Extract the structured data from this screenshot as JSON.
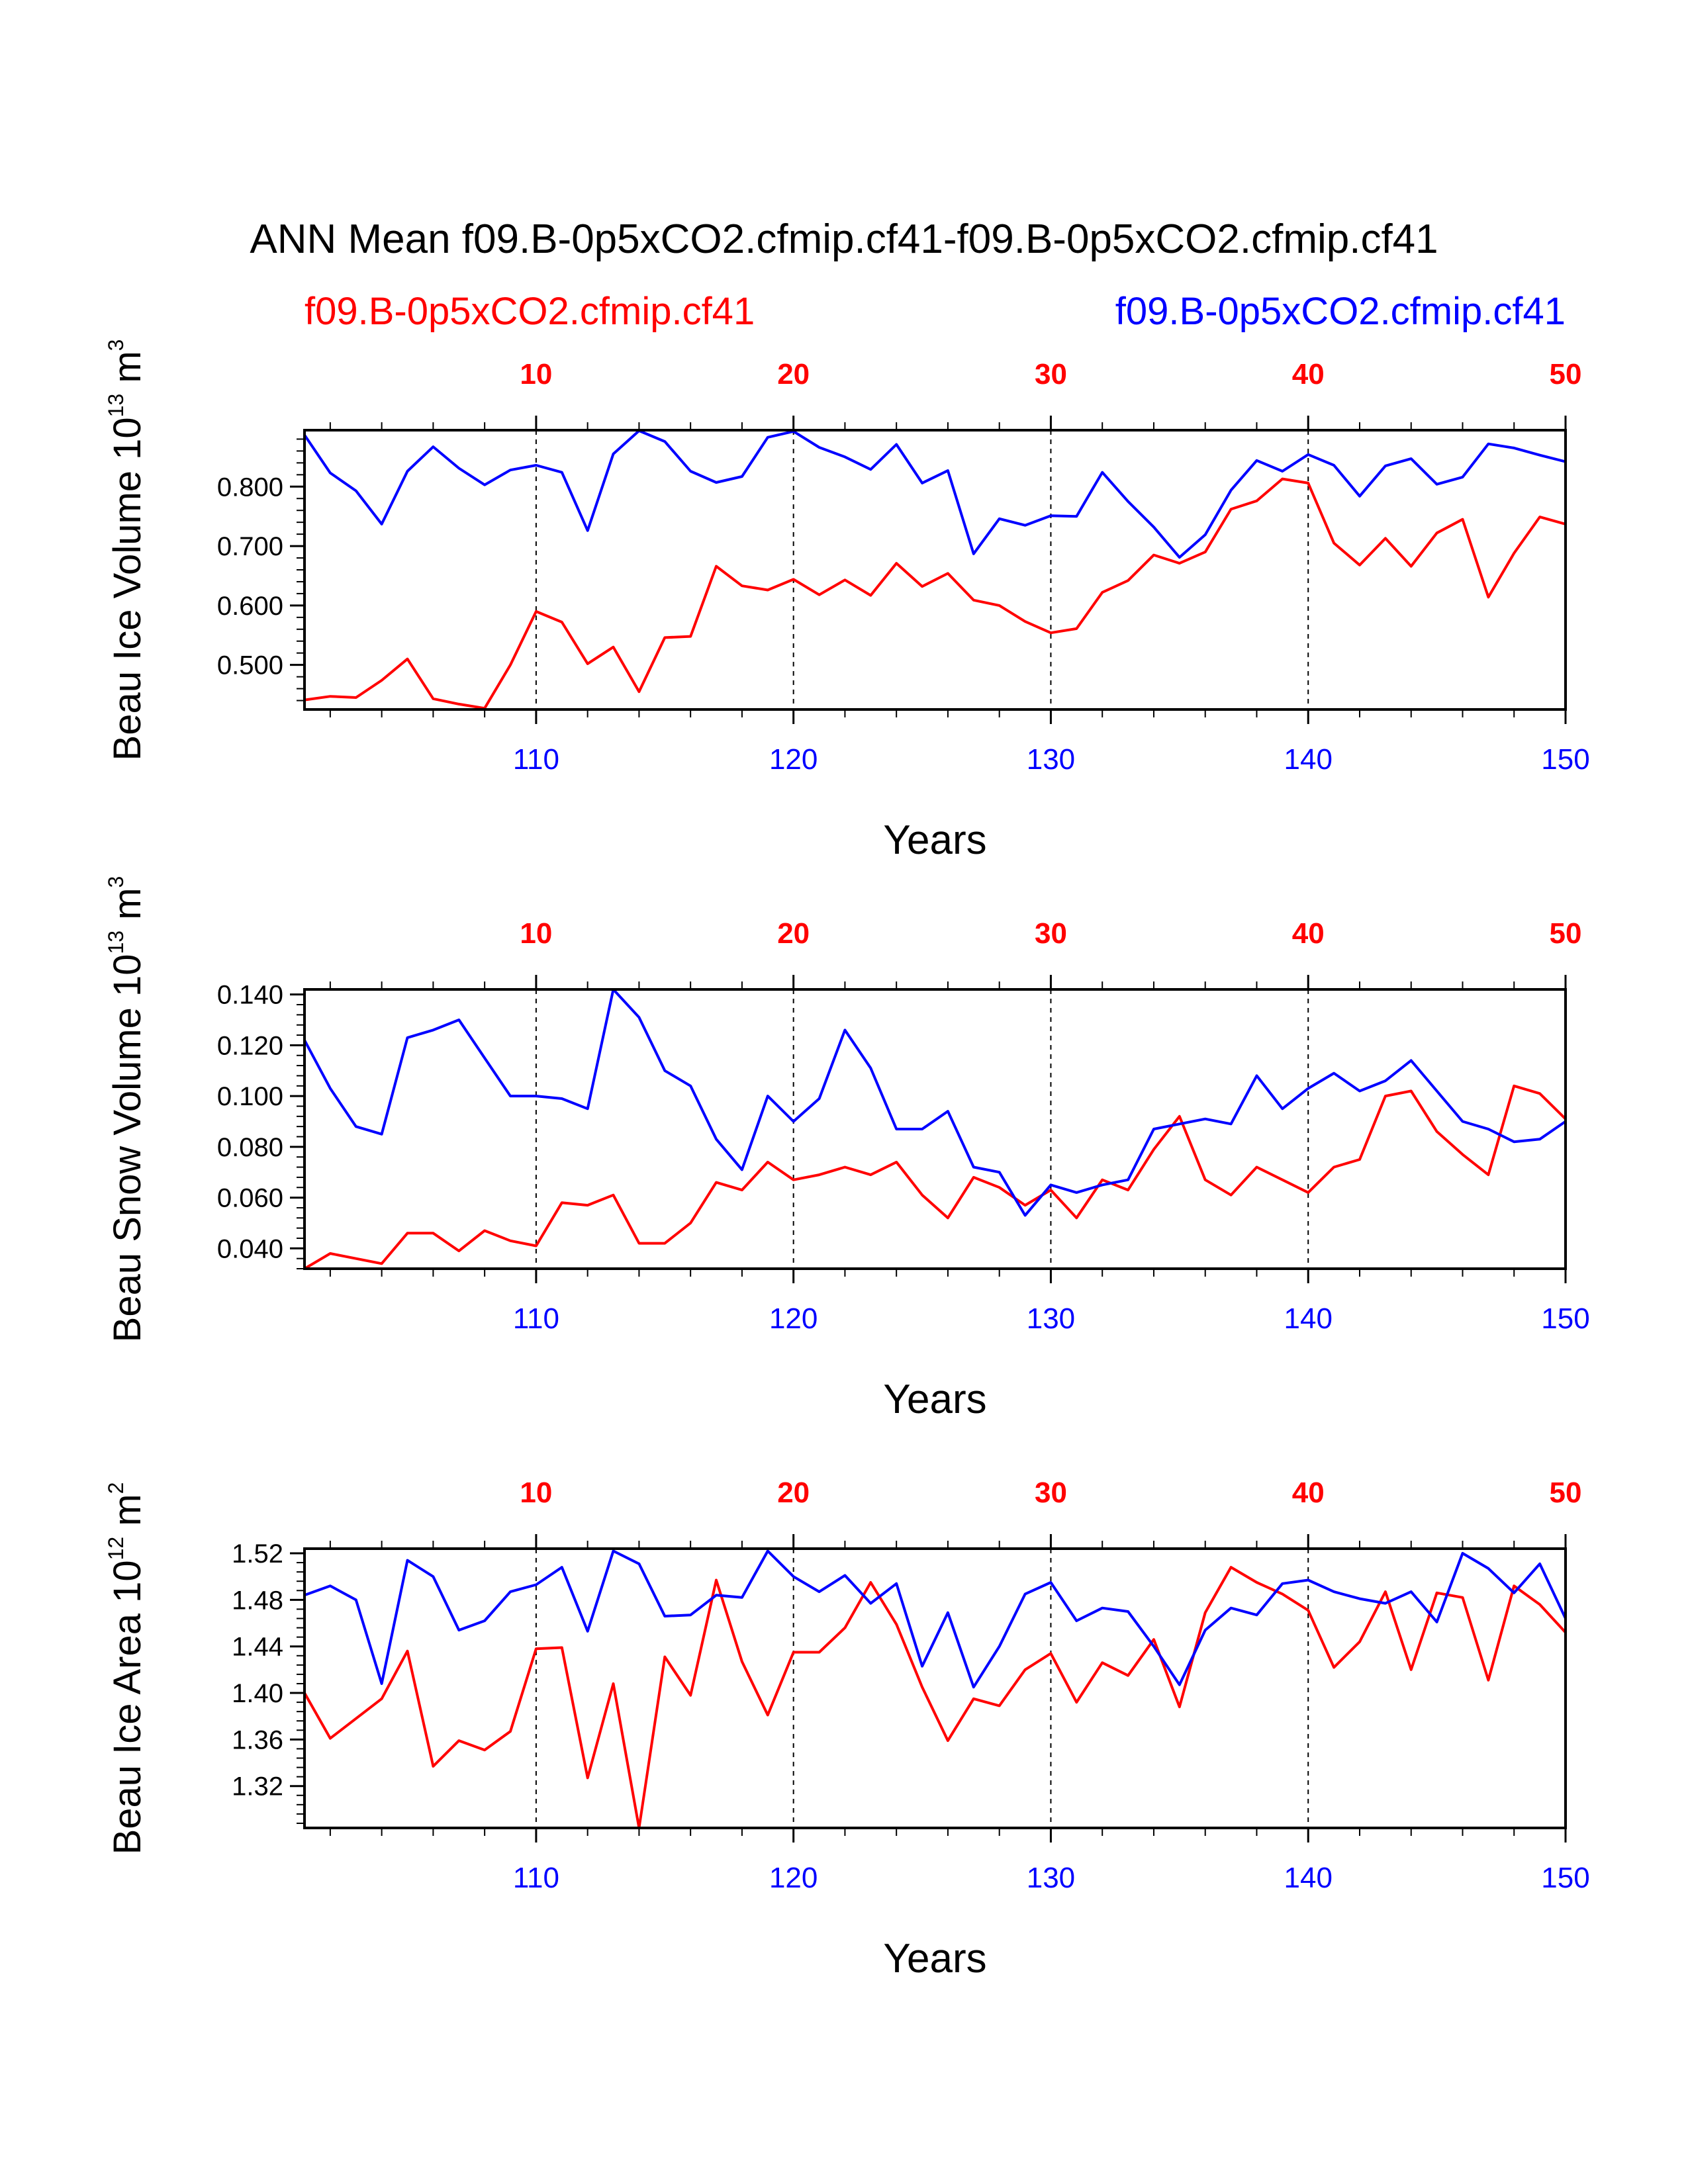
{
  "figure": {
    "title": "ANN Mean f09.B-0p5xCO2.cfmip.cf41-f09.B-0p5xCO2.cfmip.cf41",
    "legend": {
      "red_label": "f09.B-0p5xCO2.cfmip.cf41",
      "blue_label": "f09.B-0p5xCO2.cfmip.cf41"
    },
    "colors": {
      "red": "#ff0000",
      "blue": "#0000ff",
      "axis": "#000000"
    }
  },
  "chart_data": [
    {
      "type": "line",
      "ylabel": "Beau Ice Volume 10",
      "ylabel_exp": "13",
      "ylabel_unit": " m",
      "ylabel_unit_exp": "3",
      "xlabel": "Years",
      "xlim": [
        101,
        150
      ],
      "ylim": [
        0.425,
        0.895
      ],
      "ytick_values": [
        0.5,
        0.6,
        0.7,
        0.8
      ],
      "ytick_labels": [
        "0.500",
        "0.600",
        "0.700",
        "0.800"
      ],
      "yminor_step": 0.02,
      "bottom_ticks": [
        110,
        120,
        130,
        140,
        150
      ],
      "top_ticks": [
        10,
        20,
        30,
        40,
        50
      ],
      "top_offset": 100,
      "gridlines_at": [
        110,
        120,
        130,
        140
      ],
      "x": [
        101,
        102,
        103,
        104,
        105,
        106,
        107,
        108,
        109,
        110,
        111,
        112,
        113,
        114,
        115,
        116,
        117,
        118,
        119,
        120,
        121,
        122,
        123,
        124,
        125,
        126,
        127,
        128,
        129,
        130,
        131,
        132,
        133,
        134,
        135,
        136,
        137,
        138,
        139,
        140,
        141,
        142,
        143,
        144,
        145,
        146,
        147,
        148,
        149,
        150
      ],
      "series": [
        {
          "name": "f09.B-0p5xCO2.cfmip.cf41",
          "color": "#ff0000",
          "values": [
            0.441,
            0.447,
            0.445,
            0.474,
            0.51,
            0.443,
            0.434,
            0.427,
            0.5,
            0.59,
            0.572,
            0.502,
            0.53,
            0.455,
            0.546,
            0.548,
            0.666,
            0.633,
            0.626,
            0.644,
            0.618,
            0.643,
            0.617,
            0.671,
            0.632,
            0.654,
            0.609,
            0.6,
            0.573,
            0.554,
            0.561,
            0.622,
            0.642,
            0.685,
            0.671,
            0.69,
            0.762,
            0.776,
            0.813,
            0.806,
            0.705,
            0.668,
            0.713,
            0.666,
            0.722,
            0.745,
            0.614,
            0.688,
            0.749,
            0.737
          ]
        },
        {
          "name": "f09.B-0p5xCO2.cfmip.cf41",
          "color": "#0000ff",
          "values": [
            0.887,
            0.823,
            0.793,
            0.737,
            0.826,
            0.867,
            0.831,
            0.803,
            0.828,
            0.836,
            0.824,
            0.726,
            0.855,
            0.894,
            0.876,
            0.826,
            0.807,
            0.817,
            0.883,
            0.893,
            0.866,
            0.85,
            0.829,
            0.871,
            0.806,
            0.827,
            0.687,
            0.746,
            0.735,
            0.751,
            0.75,
            0.824,
            0.775,
            0.732,
            0.681,
            0.719,
            0.794,
            0.844,
            0.826,
            0.854,
            0.836,
            0.784,
            0.835,
            0.847,
            0.804,
            0.816,
            0.872,
            0.865,
            0.853,
            0.842
          ]
        }
      ]
    },
    {
      "type": "line",
      "ylabel": "Beau Snow Volume 10",
      "ylabel_exp": "13",
      "ylabel_unit": " m",
      "ylabel_unit_exp": "3",
      "xlabel": "Years",
      "xlim": [
        101,
        150
      ],
      "ylim": [
        0.032,
        0.142
      ],
      "ytick_values": [
        0.04,
        0.06,
        0.08,
        0.1,
        0.12,
        0.14
      ],
      "ytick_labels": [
        "0.040",
        "0.060",
        "0.080",
        "0.100",
        "0.120",
        "0.140"
      ],
      "yminor_step": 0.004,
      "bottom_ticks": [
        110,
        120,
        130,
        140,
        150
      ],
      "top_ticks": [
        10,
        20,
        30,
        40,
        50
      ],
      "top_offset": 100,
      "gridlines_at": [
        110,
        120,
        130,
        140
      ],
      "x": [
        101,
        102,
        103,
        104,
        105,
        106,
        107,
        108,
        109,
        110,
        111,
        112,
        113,
        114,
        115,
        116,
        117,
        118,
        119,
        120,
        121,
        122,
        123,
        124,
        125,
        126,
        127,
        128,
        129,
        130,
        131,
        132,
        133,
        134,
        135,
        136,
        137,
        138,
        139,
        140,
        141,
        142,
        143,
        144,
        145,
        146,
        147,
        148,
        149,
        150
      ],
      "series": [
        {
          "name": "f09.B-0p5xCO2.cfmip.cf41",
          "color": "#ff0000",
          "values": [
            0.032,
            0.038,
            0.036,
            0.034,
            0.046,
            0.046,
            0.039,
            0.047,
            0.043,
            0.041,
            0.058,
            0.057,
            0.061,
            0.042,
            0.042,
            0.05,
            0.066,
            0.063,
            0.074,
            0.067,
            0.069,
            0.072,
            0.069,
            0.074,
            0.061,
            0.052,
            0.068,
            0.064,
            0.057,
            0.063,
            0.052,
            0.067,
            0.063,
            0.079,
            0.092,
            0.067,
            0.061,
            0.072,
            0.067,
            0.062,
            0.072,
            0.075,
            0.1,
            0.102,
            0.086,
            0.077,
            0.069,
            0.104,
            0.101,
            0.091
          ]
        },
        {
          "name": "f09.B-0p5xCO2.cfmip.cf41",
          "color": "#0000ff",
          "values": [
            0.122,
            0.103,
            0.088,
            0.085,
            0.123,
            0.126,
            0.13,
            0.115,
            0.1,
            0.1,
            0.099,
            0.095,
            0.142,
            0.131,
            0.11,
            0.104,
            0.083,
            0.071,
            0.1,
            0.09,
            0.099,
            0.126,
            0.111,
            0.087,
            0.087,
            0.094,
            0.072,
            0.07,
            0.053,
            0.065,
            0.062,
            0.065,
            0.067,
            0.087,
            0.089,
            0.091,
            0.089,
            0.108,
            0.095,
            0.103,
            0.109,
            0.102,
            0.106,
            0.114,
            0.102,
            0.09,
            0.087,
            0.082,
            0.083,
            0.09
          ]
        }
      ]
    },
    {
      "type": "line",
      "ylabel": "Beau Ice Area 10",
      "ylabel_exp": "12",
      "ylabel_unit": " m",
      "ylabel_unit_exp": "2",
      "xlabel": "Years",
      "xlim": [
        101,
        150
      ],
      "ylim": [
        1.284,
        1.524
      ],
      "ytick_values": [
        1.32,
        1.36,
        1.4,
        1.44,
        1.48,
        1.52
      ],
      "ytick_labels": [
        "1.32",
        "1.36",
        "1.40",
        "1.44",
        "1.48",
        "1.52"
      ],
      "yminor_step": 0.008,
      "bottom_ticks": [
        110,
        120,
        130,
        140,
        150
      ],
      "top_ticks": [
        10,
        20,
        30,
        40,
        50
      ],
      "top_offset": 100,
      "gridlines_at": [
        110,
        120,
        130,
        140
      ],
      "x": [
        101,
        102,
        103,
        104,
        105,
        106,
        107,
        108,
        109,
        110,
        111,
        112,
        113,
        114,
        115,
        116,
        117,
        118,
        119,
        120,
        121,
        122,
        123,
        124,
        125,
        126,
        127,
        128,
        129,
        130,
        131,
        132,
        133,
        134,
        135,
        136,
        137,
        138,
        139,
        140,
        141,
        142,
        143,
        144,
        145,
        146,
        147,
        148,
        149,
        150
      ],
      "series": [
        {
          "name": "f09.B-0p5xCO2.cfmip.cf41",
          "color": "#ff0000",
          "values": [
            1.4,
            1.361,
            1.378,
            1.395,
            1.436,
            1.337,
            1.359,
            1.351,
            1.367,
            1.438,
            1.439,
            1.327,
            1.408,
            1.284,
            1.431,
            1.398,
            1.497,
            1.427,
            1.381,
            1.435,
            1.435,
            1.456,
            1.495,
            1.459,
            1.405,
            1.359,
            1.395,
            1.389,
            1.42,
            1.434,
            1.392,
            1.426,
            1.415,
            1.446,
            1.388,
            1.469,
            1.508,
            1.495,
            1.485,
            1.471,
            1.422,
            1.444,
            1.487,
            1.42,
            1.486,
            1.482,
            1.411,
            1.492,
            1.476,
            1.452
          ]
        },
        {
          "name": "f09.B-0p5xCO2.cfmip.cf41",
          "color": "#0000ff",
          "values": [
            1.484,
            1.492,
            1.48,
            1.408,
            1.514,
            1.5,
            1.454,
            1.462,
            1.487,
            1.493,
            1.508,
            1.453,
            1.522,
            1.511,
            1.466,
            1.467,
            1.484,
            1.482,
            1.522,
            1.5,
            1.487,
            1.501,
            1.477,
            1.494,
            1.423,
            1.469,
            1.405,
            1.44,
            1.485,
            1.495,
            1.462,
            1.473,
            1.47,
            1.44,
            1.407,
            1.454,
            1.473,
            1.467,
            1.494,
            1.497,
            1.487,
            1.481,
            1.477,
            1.487,
            1.461,
            1.52,
            1.507,
            1.486,
            1.511,
            1.464
          ]
        }
      ]
    }
  ]
}
